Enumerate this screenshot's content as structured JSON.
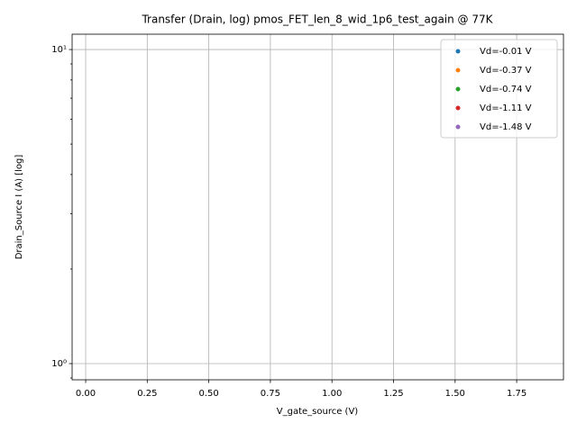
{
  "chart_data": {
    "type": "scatter",
    "title": "Transfer (Drain, log) pmos_FET_len_8_wid_1p6_test_again @ 77K",
    "x_label": "V_gate_source (V)",
    "y_label": "Drain_Source I (A) [log]",
    "y_scale": "log",
    "grid": true,
    "legend": "upper right",
    "xlim": [
      -0.055,
      1.94
    ],
    "ylim": [
      0.888,
      11.19
    ],
    "xticks": [
      {
        "value": 0,
        "label": "0.00"
      },
      {
        "value": 0.25,
        "label": "0.25"
      },
      {
        "value": 0.5,
        "label": "0.50"
      },
      {
        "value": 0.75,
        "label": "0.75"
      },
      {
        "value": 1,
        "label": "1.00"
      },
      {
        "value": 1.25,
        "label": "1.25"
      },
      {
        "value": 1.5,
        "label": "1.50"
      },
      {
        "value": 1.75,
        "label": "1.75"
      }
    ],
    "yticks": [
      {
        "value": 1,
        "label": "10⁰"
      },
      {
        "value": 10,
        "label": "10¹"
      }
    ],
    "yminorticks": [
      0.9,
      2,
      3,
      4,
      5,
      6,
      7,
      8,
      9
    ],
    "series": [
      {
        "name": "Vd=-0.01 V",
        "color": "#1f77b4",
        "x": [],
        "values": []
      },
      {
        "name": "Vd=-0.37 V",
        "color": "#ff7f0e",
        "x": [],
        "values": []
      },
      {
        "name": "Vd=-0.74 V",
        "color": "#2ca02c",
        "x": [],
        "values": []
      },
      {
        "name": "Vd=-1.11 V",
        "color": "#d62728",
        "x": [],
        "values": []
      },
      {
        "name": "Vd=-1.48 V",
        "color": "#9467bd",
        "x": [],
        "values": []
      }
    ]
  }
}
